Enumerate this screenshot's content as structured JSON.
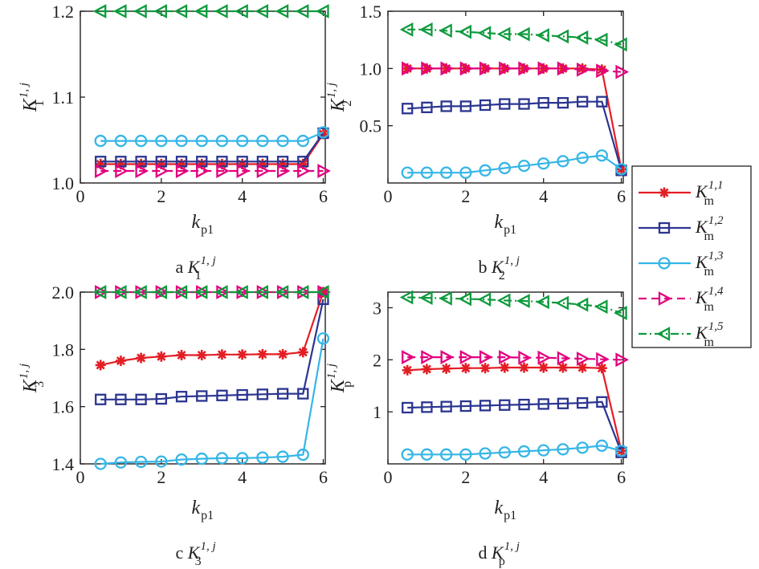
{
  "colors": {
    "s1": "#e31e24",
    "s2": "#2b3590",
    "s3": "#36b6e7",
    "s4": "#e3007f",
    "s5": "#0e9a3d",
    "axis": "#231f20"
  },
  "legend": {
    "placement": "right",
    "entries": [
      {
        "base": "K",
        "sub": "m",
        "sup": "1,1",
        "marker": "star",
        "line": "solid"
      },
      {
        "base": "K",
        "sub": "m",
        "sup": "1,2",
        "marker": "square",
        "line": "solid"
      },
      {
        "base": "K",
        "sub": "m",
        "sup": "1,3",
        "marker": "circle",
        "line": "solid"
      },
      {
        "base": "K",
        "sub": "m",
        "sup": "1,4",
        "marker": "triangle-right",
        "line": "dashed"
      },
      {
        "base": "K",
        "sub": "m",
        "sup": "1,5",
        "marker": "triangle-left",
        "line": "dashdot"
      }
    ]
  },
  "chart_data": [
    {
      "type": "line",
      "caption": {
        "letter": "a",
        "base": "K",
        "sub": "1",
        "sup": "1, j"
      },
      "xlabel": {
        "base": "k",
        "sub": "p1"
      },
      "ylabel": {
        "base": "K",
        "sub": "1",
        "sup": "1, j"
      },
      "xlim": [
        0,
        6.05
      ],
      "ylim": [
        1.0,
        1.2
      ],
      "xticks": [
        0,
        2,
        4,
        6
      ],
      "yticks": [
        1.0,
        1.1,
        1.2
      ],
      "ytick_labels": [
        "1.0",
        "1.1",
        "1.2"
      ],
      "x": [
        0.5,
        1.0,
        1.5,
        2.0,
        2.5,
        3.0,
        3.5,
        4.0,
        4.5,
        5.0,
        5.5,
        6.0
      ],
      "series": [
        {
          "values": [
            1.022,
            1.022,
            1.022,
            1.022,
            1.022,
            1.022,
            1.022,
            1.022,
            1.022,
            1.022,
            1.022,
            1.057
          ]
        },
        {
          "values": [
            1.025,
            1.025,
            1.025,
            1.025,
            1.025,
            1.025,
            1.025,
            1.025,
            1.025,
            1.025,
            1.025,
            1.058
          ]
        },
        {
          "values": [
            1.049,
            1.049,
            1.049,
            1.049,
            1.049,
            1.049,
            1.049,
            1.049,
            1.049,
            1.049,
            1.049,
            1.059
          ]
        },
        {
          "values": [
            1.014,
            1.014,
            1.014,
            1.014,
            1.014,
            1.014,
            1.014,
            1.014,
            1.014,
            1.014,
            1.014,
            1.014
          ]
        },
        {
          "values": [
            1.2,
            1.2,
            1.2,
            1.2,
            1.2,
            1.2,
            1.2,
            1.2,
            1.2,
            1.2,
            1.2,
            1.2
          ]
        }
      ]
    },
    {
      "type": "line",
      "caption": {
        "letter": "b",
        "base": "K",
        "sub": "2",
        "sup": "1, j"
      },
      "xlabel": {
        "base": "k",
        "sub": "p1"
      },
      "ylabel": {
        "base": "K",
        "sub": "2",
        "sup": "1, j"
      },
      "xlim": [
        0,
        6.05
      ],
      "ylim": [
        0,
        1.5
      ],
      "xticks": [
        0,
        2,
        4,
        6
      ],
      "yticks": [
        0.5,
        1.0,
        1.5
      ],
      "ytick_labels": [
        "0.5",
        "1.0",
        "1.5"
      ],
      "x": [
        0.5,
        1.0,
        1.5,
        2.0,
        2.5,
        3.0,
        3.5,
        4.0,
        4.5,
        5.0,
        5.5,
        6.0
      ],
      "series": [
        {
          "values": [
            1.0,
            1.0,
            1.0,
            1.0,
            1.0,
            1.0,
            1.0,
            1.0,
            1.0,
            1.0,
            0.99,
            0.12
          ]
        },
        {
          "values": [
            0.65,
            0.66,
            0.67,
            0.67,
            0.68,
            0.69,
            0.69,
            0.7,
            0.7,
            0.71,
            0.71,
            0.11
          ]
        },
        {
          "values": [
            0.09,
            0.09,
            0.09,
            0.09,
            0.11,
            0.13,
            0.15,
            0.17,
            0.19,
            0.22,
            0.24,
            0.12
          ]
        },
        {
          "values": [
            1.0,
            1.0,
            1.0,
            1.0,
            1.0,
            1.0,
            1.0,
            1.0,
            1.0,
            0.99,
            0.98,
            0.97
          ]
        },
        {
          "values": [
            1.34,
            1.34,
            1.33,
            1.32,
            1.31,
            1.3,
            1.3,
            1.29,
            1.28,
            1.27,
            1.25,
            1.21
          ]
        }
      ]
    },
    {
      "type": "line",
      "caption": {
        "letter": "c",
        "base": "K",
        "sub": "3",
        "sup": "1, j"
      },
      "xlabel": {
        "base": "k",
        "sub": "p1"
      },
      "ylabel": {
        "base": "K",
        "sub": "3",
        "sup": "1, j"
      },
      "xlim": [
        0,
        6.05
      ],
      "ylim": [
        1.4,
        2.0
      ],
      "xticks": [
        0,
        2,
        4,
        6
      ],
      "yticks": [
        1.4,
        1.6,
        1.8,
        2.0
      ],
      "ytick_labels": [
        "1.4",
        "1.6",
        "1.8",
        "2.0"
      ],
      "x": [
        0.5,
        1.0,
        1.5,
        2.0,
        2.5,
        3.0,
        3.5,
        4.0,
        4.5,
        5.0,
        5.5,
        6.0
      ],
      "series": [
        {
          "values": [
            1.745,
            1.76,
            1.77,
            1.775,
            1.78,
            1.78,
            1.782,
            1.782,
            1.783,
            1.783,
            1.79,
            2.0
          ]
        },
        {
          "values": [
            1.625,
            1.625,
            1.625,
            1.627,
            1.635,
            1.637,
            1.639,
            1.641,
            1.643,
            1.645,
            1.645,
            1.975
          ]
        },
        {
          "values": [
            1.4,
            1.405,
            1.407,
            1.408,
            1.415,
            1.418,
            1.42,
            1.42,
            1.422,
            1.425,
            1.432,
            1.838
          ]
        },
        {
          "values": [
            2.0,
            2.0,
            2.0,
            2.0,
            2.0,
            2.0,
            2.0,
            2.0,
            2.0,
            2.0,
            2.0,
            2.0
          ]
        },
        {
          "values": [
            2.0,
            2.0,
            2.0,
            2.0,
            2.0,
            2.0,
            2.0,
            2.0,
            2.0,
            2.0,
            2.0,
            2.0
          ]
        }
      ]
    },
    {
      "type": "line",
      "caption": {
        "letter": "d",
        "base": "K",
        "sub": "p",
        "sup": "1, j"
      },
      "xlabel": {
        "base": "k",
        "sub": "p1"
      },
      "ylabel": {
        "base": "K",
        "sub": "p",
        "sup": "1, j"
      },
      "xlim": [
        0,
        6.05
      ],
      "ylim": [
        0,
        3.3
      ],
      "xticks": [
        0,
        2,
        4,
        6
      ],
      "yticks": [
        1,
        2,
        3
      ],
      "ytick_labels": [
        "1",
        "2",
        "3"
      ],
      "x": [
        0.5,
        1.0,
        1.5,
        2.0,
        2.5,
        3.0,
        3.5,
        4.0,
        4.5,
        5.0,
        5.5,
        6.0
      ],
      "series": [
        {
          "values": [
            1.8,
            1.82,
            1.83,
            1.84,
            1.84,
            1.85,
            1.85,
            1.85,
            1.85,
            1.85,
            1.84,
            0.25
          ]
        },
        {
          "values": [
            1.08,
            1.09,
            1.1,
            1.11,
            1.12,
            1.13,
            1.14,
            1.15,
            1.16,
            1.17,
            1.19,
            0.22
          ]
        },
        {
          "values": [
            0.18,
            0.18,
            0.18,
            0.18,
            0.2,
            0.22,
            0.24,
            0.26,
            0.28,
            0.31,
            0.35,
            0.25
          ]
        },
        {
          "values": [
            2.05,
            2.05,
            2.05,
            2.05,
            2.05,
            2.05,
            2.04,
            2.04,
            2.03,
            2.02,
            2.01,
            2.0
          ]
        },
        {
          "values": [
            3.2,
            3.19,
            3.18,
            3.17,
            3.16,
            3.14,
            3.13,
            3.11,
            3.09,
            3.06,
            3.02,
            2.9
          ]
        }
      ]
    }
  ]
}
